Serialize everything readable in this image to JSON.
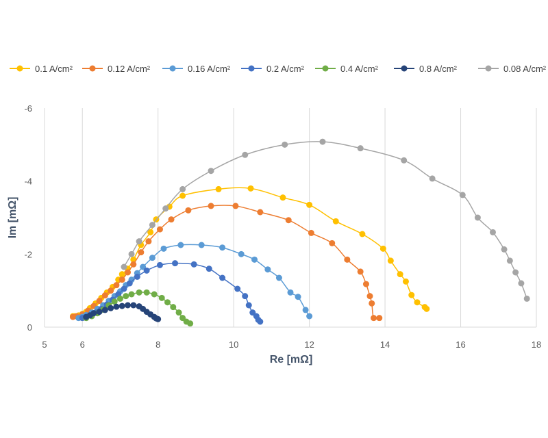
{
  "chart_data": {
    "type": "scatter",
    "title": "",
    "xlabel": "Re [mΩ]",
    "ylabel": "Im [mΩ]",
    "xlim": [
      5,
      18
    ],
    "ylim": [
      0,
      -6
    ],
    "xticks": [
      "5",
      "6",
      "8",
      "10",
      "12",
      "14",
      "16",
      "18"
    ],
    "yticks": [
      "-6",
      "-4",
      "-2",
      "0"
    ],
    "grid": "vertical",
    "legend": "top",
    "series": [
      {
        "name": "0.1 A/cm²",
        "color": "#FFC000",
        "x": [
          5.75,
          5.8,
          5.9,
          6.0,
          6.1,
          6.2,
          6.35,
          6.5,
          6.65,
          6.8,
          6.95,
          7.05,
          7.2,
          7.35,
          7.55,
          7.8,
          7.95,
          8.3,
          8.65,
          9.6,
          10.45,
          11.3,
          12.0,
          12.7,
          13.4,
          13.95,
          14.15,
          14.4,
          14.55,
          14.7,
          14.85,
          15.05,
          15.1
        ],
        "y": [
          -0.3,
          -0.3,
          -0.32,
          -0.36,
          -0.42,
          -0.52,
          -0.65,
          -0.8,
          -0.95,
          -1.1,
          -1.3,
          -1.45,
          -1.6,
          -1.85,
          -2.25,
          -2.6,
          -2.95,
          -3.3,
          -3.6,
          -3.78,
          -3.8,
          -3.55,
          -3.35,
          -2.9,
          -2.55,
          -2.15,
          -1.82,
          -1.45,
          -1.25,
          -0.88,
          -0.68,
          -0.55,
          -0.5
        ]
      },
      {
        "name": "0.12 A/cm²",
        "color": "#ED7D31",
        "x": [
          5.75,
          5.85,
          6.0,
          6.15,
          6.3,
          6.45,
          6.6,
          6.75,
          6.9,
          7.05,
          7.2,
          7.35,
          7.55,
          7.75,
          8.05,
          8.35,
          8.8,
          9.4,
          10.05,
          10.7,
          11.45,
          12.05,
          12.6,
          13.0,
          13.35,
          13.5,
          13.6,
          13.65,
          13.7,
          13.85
        ],
        "y": [
          -0.28,
          -0.3,
          -0.35,
          -0.45,
          -0.58,
          -0.72,
          -0.87,
          -1.0,
          -1.15,
          -1.3,
          -1.5,
          -1.72,
          -2.05,
          -2.35,
          -2.68,
          -2.95,
          -3.2,
          -3.32,
          -3.32,
          -3.15,
          -2.93,
          -2.58,
          -2.3,
          -1.85,
          -1.52,
          -1.18,
          -0.85,
          -0.65,
          -0.25,
          -0.25
        ]
      },
      {
        "name": "0.16 A/cm²",
        "color": "#5B9BD5",
        "x": [
          5.9,
          6.0,
          6.1,
          6.25,
          6.4,
          6.55,
          6.7,
          6.85,
          7.0,
          7.15,
          7.3,
          7.45,
          7.6,
          7.85,
          8.15,
          8.6,
          9.15,
          9.7,
          10.2,
          10.55,
          10.9,
          11.2,
          11.5,
          11.7,
          11.9,
          12.0
        ],
        "y": [
          -0.25,
          -0.28,
          -0.33,
          -0.4,
          -0.5,
          -0.6,
          -0.72,
          -0.85,
          -0.98,
          -1.15,
          -1.3,
          -1.48,
          -1.65,
          -1.9,
          -2.15,
          -2.25,
          -2.25,
          -2.18,
          -2.0,
          -1.85,
          -1.58,
          -1.35,
          -0.95,
          -0.83,
          -0.47,
          -0.3
        ]
      },
      {
        "name": "0.2 A/cm²",
        "color": "#4472C4",
        "x": [
          6.0,
          6.1,
          6.2,
          6.35,
          6.5,
          6.65,
          6.8,
          6.95,
          7.1,
          7.25,
          7.45,
          7.7,
          8.05,
          8.45,
          8.95,
          9.35,
          9.7,
          10.1,
          10.3,
          10.4,
          10.5,
          10.6,
          10.65,
          10.7
        ],
        "y": [
          -0.25,
          -0.28,
          -0.33,
          -0.4,
          -0.5,
          -0.62,
          -0.75,
          -0.9,
          -1.05,
          -1.2,
          -1.38,
          -1.55,
          -1.7,
          -1.75,
          -1.72,
          -1.6,
          -1.35,
          -1.05,
          -0.85,
          -0.6,
          -0.4,
          -0.3,
          -0.2,
          -0.15
        ]
      },
      {
        "name": "0.4 A/cm²",
        "color": "#70AD47",
        "x": [
          6.1,
          6.25,
          6.4,
          6.55,
          6.7,
          6.85,
          7.0,
          7.15,
          7.3,
          7.5,
          7.7,
          7.9,
          8.1,
          8.25,
          8.4,
          8.55,
          8.65,
          8.75,
          8.85
        ],
        "y": [
          -0.25,
          -0.3,
          -0.38,
          -0.48,
          -0.6,
          -0.7,
          -0.78,
          -0.85,
          -0.9,
          -0.95,
          -0.95,
          -0.9,
          -0.8,
          -0.68,
          -0.55,
          -0.4,
          -0.25,
          -0.15,
          -0.1
        ]
      },
      {
        "name": "0.8 A/cm²",
        "color": "#264478",
        "x": [
          6.1,
          6.2,
          6.3,
          6.45,
          6.6,
          6.75,
          6.9,
          7.05,
          7.2,
          7.35,
          7.5,
          7.6,
          7.7,
          7.8,
          7.9,
          7.95,
          8.0
        ],
        "y": [
          -0.28,
          -0.32,
          -0.38,
          -0.42,
          -0.47,
          -0.52,
          -0.56,
          -0.58,
          -0.6,
          -0.6,
          -0.57,
          -0.5,
          -0.42,
          -0.35,
          -0.28,
          -0.24,
          -0.22
        ]
      },
      {
        "name": "0.08 A/cm²",
        "color": "#A5A5A5",
        "x": [
          7.1,
          7.3,
          7.5,
          7.85,
          8.2,
          8.65,
          9.4,
          10.3,
          11.35,
          12.35,
          13.35,
          14.5,
          15.25,
          16.05,
          16.45,
          16.85,
          17.15,
          17.3,
          17.45,
          17.6,
          17.75
        ],
        "y": [
          -1.65,
          -2.0,
          -2.35,
          -2.8,
          -3.25,
          -3.78,
          -4.28,
          -4.72,
          -5.0,
          -5.08,
          -4.9,
          -4.57,
          -4.07,
          -3.62,
          -3.0,
          -2.6,
          -2.13,
          -1.82,
          -1.5,
          -1.2,
          -0.78
        ]
      }
    ]
  }
}
